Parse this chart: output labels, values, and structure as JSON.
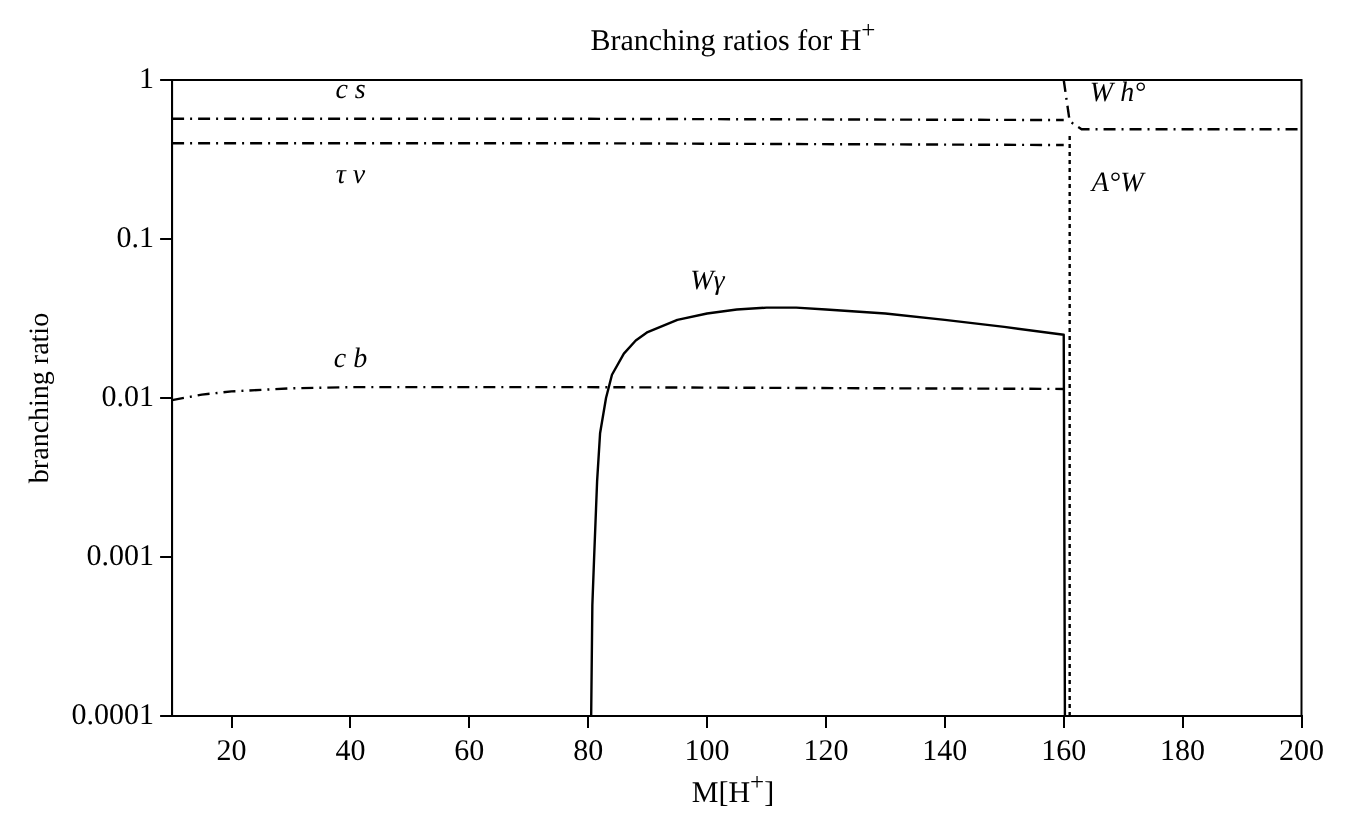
{
  "chart_data": {
    "type": "line",
    "title": "Branching ratios for H$^{+}$",
    "xlabel": "M[H$^{+}$]",
    "ylabel": "branching ratio",
    "log": "y",
    "grid": false,
    "legend": false,
    "marker": "none",
    "xlim": [
      10,
      200
    ],
    "xticks": [
      20,
      40,
      60,
      80,
      100,
      120,
      140,
      160,
      180,
      200
    ],
    "ylim": [
      0.0001,
      1
    ],
    "yticks": [
      0.0001,
      0.001,
      0.01,
      0.1,
      1
    ],
    "series": [
      {
        "name": "c s",
        "color": "#000000",
        "line_style": "dashed",
        "x": [
          10,
          80,
          160
        ],
        "values": [
          0.57,
          0.57,
          0.56
        ]
      },
      {
        "name": "τ ν",
        "color": "#000000",
        "line_style": "dashed",
        "x": [
          10,
          80,
          160
        ],
        "values": [
          0.4,
          0.4,
          0.39
        ]
      },
      {
        "name": "c b",
        "color": "#000000",
        "line_style": "dashed",
        "x": [
          10,
          15,
          20,
          30,
          40,
          80,
          160
        ],
        "values": [
          0.0097,
          0.0105,
          0.011,
          0.0115,
          0.0117,
          0.0117,
          0.0114
        ]
      },
      {
        "name": "Wγ",
        "color": "#000000",
        "line_style": "solid",
        "x": [
          80.5,
          80.7,
          81,
          81.5,
          82,
          83,
          84,
          86,
          88,
          90,
          95,
          100,
          105,
          110,
          115,
          120,
          130,
          140,
          150,
          160,
          160.2
        ],
        "values": [
          0.0001,
          0.0005,
          0.001,
          0.003,
          0.006,
          0.01,
          0.014,
          0.019,
          0.023,
          0.026,
          0.031,
          0.034,
          0.036,
          0.037,
          0.037,
          0.036,
          0.034,
          0.031,
          0.028,
          0.025,
          0.0001
        ]
      },
      {
        "name": "W h°",
        "color": "#000000",
        "line_style": "dashed",
        "x": [
          160,
          161,
          163,
          200
        ],
        "values": [
          1,
          0.55,
          0.49,
          0.49
        ]
      },
      {
        "name": "A°W",
        "color": "#000000",
        "line_style": "dotted",
        "x": [
          161,
          161
        ],
        "values": [
          0.0001,
          0.45
        ]
      }
    ]
  }
}
